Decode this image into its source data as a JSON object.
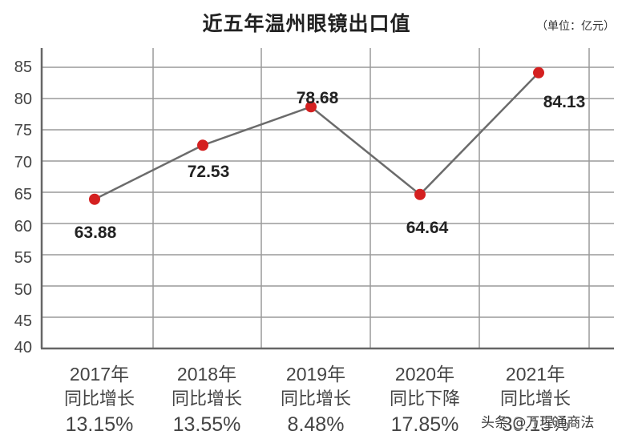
{
  "header": {
    "title": "近五年温州眼镜出口值",
    "unit": "（单位：亿元）"
  },
  "chart_data": {
    "type": "line",
    "title": "近五年温州眼镜出口值",
    "subtitle": "（单位：亿元）",
    "xlabel": "",
    "ylabel": "亿元",
    "categories": [
      "2017年",
      "2018年",
      "2019年",
      "2020年",
      "2021年"
    ],
    "values": [
      63.88,
      72.53,
      78.68,
      64.64,
      84.13
    ],
    "value_labels": [
      "63.88",
      "72.53",
      "78.68",
      "64.64",
      "84.13"
    ],
    "ylim": [
      40,
      85
    ],
    "yticks": [
      "85",
      "80",
      "75",
      "70",
      "65",
      "60",
      "55",
      "50",
      "45",
      "40"
    ],
    "grid": true,
    "legend": null,
    "annotations": [
      {
        "year": "2017年",
        "desc": "同比增长",
        "pct": "13.15%"
      },
      {
        "year": "2018年",
        "desc": "同比增长",
        "pct": "13.55%"
      },
      {
        "year": "2019年",
        "desc": "同比增长",
        "pct": "8.48%"
      },
      {
        "year": "2020年",
        "desc": "同比下降",
        "pct": "17.85%"
      },
      {
        "year": "2021年",
        "desc": "同比增长",
        "pct": "30.15%"
      }
    ],
    "colors": {
      "line": "#6b6b6b",
      "marker": "#d42020",
      "grid": "#9a9a9a",
      "axis": "#666666"
    }
  },
  "watermark": "头条 @万瑆通商法"
}
